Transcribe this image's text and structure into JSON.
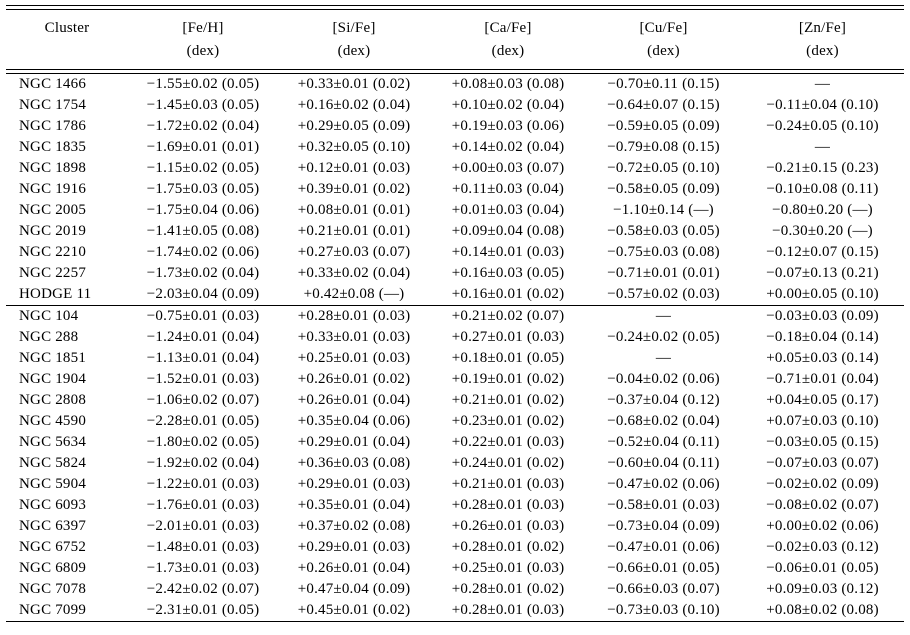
{
  "page": {
    "background": "#ffffff",
    "text_color": "#000000"
  },
  "table": {
    "missing_value": "—",
    "header": {
      "columns": [
        {
          "label": "Cluster",
          "unit": ""
        },
        {
          "label": "[Fe/H]",
          "unit": "(dex)"
        },
        {
          "label": "[Si/Fe]",
          "unit": "(dex)"
        },
        {
          "label": "[Ca/Fe]",
          "unit": "(dex)"
        },
        {
          "label": "[Cu/Fe]",
          "unit": "(dex)"
        },
        {
          "label": "[Zn/Fe]",
          "unit": "(dex)"
        }
      ]
    },
    "sections": [
      {
        "name": "section-1",
        "rows": [
          [
            "NGC 1466",
            "−1.55±0.02 (0.05)",
            "+0.33±0.01 (0.02)",
            "+0.08±0.03 (0.08)",
            "−0.70±0.11 (0.15)",
            "—"
          ],
          [
            "NGC 1754",
            "−1.45±0.03 (0.05)",
            "+0.16±0.02 (0.04)",
            "+0.10±0.02 (0.04)",
            "−0.64±0.07 (0.15)",
            "−0.11±0.04 (0.10)"
          ],
          [
            "NGC 1786",
            "−1.72±0.02 (0.04)",
            "+0.29±0.05 (0.09)",
            "+0.19±0.03 (0.06)",
            "−0.59±0.05 (0.09)",
            "−0.24±0.05 (0.10)"
          ],
          [
            "NGC 1835",
            "−1.69±0.01 (0.01)",
            "+0.32±0.05 (0.10)",
            "+0.14±0.02 (0.04)",
            "−0.79±0.08 (0.15)",
            "—"
          ],
          [
            "NGC 1898",
            "−1.15±0.02 (0.05)",
            "+0.12±0.01 (0.03)",
            "+0.00±0.03 (0.07)",
            "−0.72±0.05 (0.10)",
            "−0.21±0.15 (0.23)"
          ],
          [
            "NGC 1916",
            "−1.75±0.03 (0.05)",
            "+0.39±0.01 (0.02)",
            "+0.11±0.03 (0.04)",
            "−0.58±0.05 (0.09)",
            "−0.10±0.08 (0.11)"
          ],
          [
            "NGC 2005",
            "−1.75±0.04 (0.06)",
            "+0.08±0.01 (0.01)",
            "+0.01±0.03 (0.04)",
            "−1.10±0.14 (—)",
            "−0.80±0.20 (—)"
          ],
          [
            "NGC 2019",
            "−1.41±0.05 (0.08)",
            "+0.21±0.01 (0.01)",
            "+0.09±0.04 (0.08)",
            "−0.58±0.03 (0.05)",
            "−0.30±0.20 (—)"
          ],
          [
            "NGC 2210",
            "−1.74±0.02 (0.06)",
            "+0.27±0.03 (0.07)",
            "+0.14±0.01 (0.03)",
            "−0.75±0.03 (0.08)",
            "−0.12±0.07 (0.15)"
          ],
          [
            "NGC 2257",
            "−1.73±0.02 (0.04)",
            "+0.33±0.02 (0.04)",
            "+0.16±0.03 (0.05)",
            "−0.71±0.01 (0.01)",
            "−0.07±0.13 (0.21)"
          ],
          [
            "HODGE 11",
            "−2.03±0.04 (0.09)",
            "+0.42±0.08 (—)",
            "+0.16±0.01 (0.02)",
            "−0.57±0.02 (0.03)",
            "+0.00±0.05 (0.10)"
          ]
        ]
      },
      {
        "name": "section-2",
        "rows": [
          [
            "NGC 104",
            "−0.75±0.01 (0.03)",
            "+0.28±0.01 (0.03)",
            "+0.21±0.02 (0.07)",
            "—",
            "−0.03±0.03 (0.09)"
          ],
          [
            "NGC 288",
            "−1.24±0.01 (0.04)",
            "+0.33±0.01 (0.03)",
            "+0.27±0.01 (0.03)",
            "−0.24±0.02 (0.05)",
            "−0.18±0.04 (0.14)"
          ],
          [
            "NGC 1851",
            "−1.13±0.01 (0.04)",
            "+0.25±0.01 (0.03)",
            "+0.18±0.01 (0.05)",
            "—",
            "+0.05±0.03 (0.14)"
          ],
          [
            "NGC 1904",
            "−1.52±0.01 (0.03)",
            "+0.26±0.01 (0.02)",
            "+0.19±0.01 (0.02)",
            "−0.04±0.02 (0.06)",
            "−0.71±0.01 (0.04)"
          ],
          [
            "NGC 2808",
            "−1.06±0.02 (0.07)",
            "+0.26±0.01 (0.04)",
            "+0.21±0.01 (0.02)",
            "−0.37±0.04 (0.12)",
            "+0.04±0.05 (0.17)"
          ],
          [
            "NGC 4590",
            "−2.28±0.01 (0.05)",
            "+0.35±0.04 (0.06)",
            "+0.23±0.01 (0.02)",
            "−0.68±0.02 (0.04)",
            "+0.07±0.03 (0.10)"
          ],
          [
            "NGC 5634",
            "−1.80±0.02 (0.05)",
            "+0.29±0.01 (0.04)",
            "+0.22±0.01 (0.03)",
            "−0.52±0.04 (0.11)",
            "−0.03±0.05 (0.15)"
          ],
          [
            "NGC 5824",
            "−1.92±0.02 (0.04)",
            "+0.36±0.03 (0.08)",
            "+0.24±0.01 (0.02)",
            "−0.60±0.04 (0.11)",
            "−0.07±0.03 (0.07)"
          ],
          [
            "NGC 5904",
            "−1.22±0.01 (0.03)",
            "+0.29±0.01 (0.03)",
            "+0.21±0.01 (0.03)",
            "−0.47±0.02 (0.06)",
            "−0.02±0.02 (0.09)"
          ],
          [
            "NGC 6093",
            "−1.76±0.01 (0.03)",
            "+0.35±0.01 (0.04)",
            "+0.28±0.01 (0.03)",
            "−0.58±0.01 (0.03)",
            "−0.08±0.02 (0.07)"
          ],
          [
            "NGC 6397",
            "−2.01±0.01 (0.03)",
            "+0.37±0.02 (0.08)",
            "+0.26±0.01 (0.03)",
            "−0.73±0.04 (0.09)",
            "+0.00±0.02 (0.06)"
          ],
          [
            "NGC 6752",
            "−1.48±0.01 (0.03)",
            "+0.29±0.01 (0.03)",
            "+0.28±0.01 (0.02)",
            "−0.47±0.01 (0.06)",
            "−0.02±0.03 (0.12)"
          ],
          [
            "NGC 6809",
            "−1.73±0.01 (0.03)",
            "+0.26±0.01 (0.04)",
            "+0.25±0.01 (0.03)",
            "−0.66±0.01 (0.05)",
            "−0.06±0.01 (0.05)"
          ],
          [
            "NGC 7078",
            "−2.42±0.02 (0.07)",
            "+0.47±0.04 (0.09)",
            "+0.28±0.01 (0.02)",
            "−0.66±0.03 (0.07)",
            "+0.09±0.03 (0.12)"
          ],
          [
            "NGC 7099",
            "−2.31±0.01 (0.05)",
            "+0.45±0.01 (0.02)",
            "+0.28±0.01 (0.03)",
            "−0.73±0.03 (0.10)",
            "+0.08±0.02 (0.08)"
          ]
        ]
      }
    ]
  }
}
